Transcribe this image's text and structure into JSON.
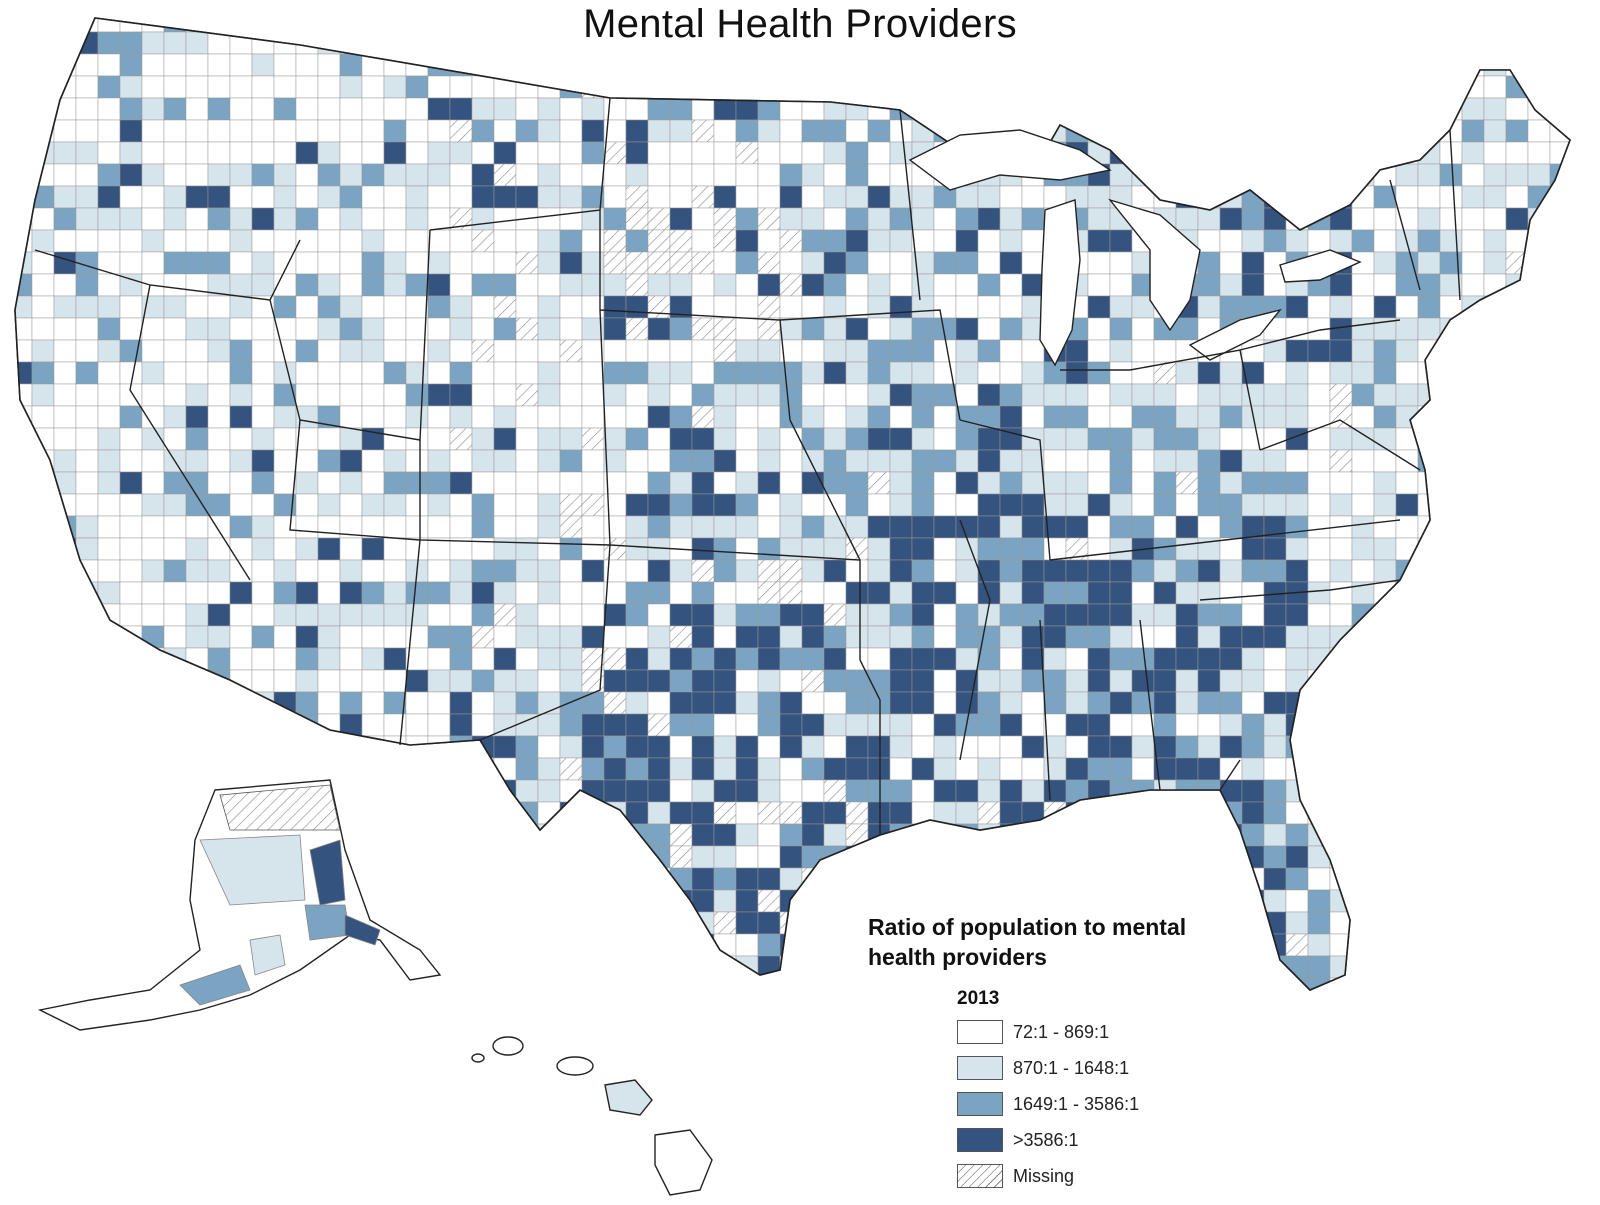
{
  "title": "Mental Health Providers",
  "legend": {
    "title_line1": "Ratio of population to mental",
    "title_line2": "health providers",
    "year": "2013",
    "items": [
      {
        "label": "72:1 - 869:1",
        "color": "#ffffff",
        "pattern": "none"
      },
      {
        "label": "870:1 - 1648:1",
        "color": "#d6e4ec",
        "pattern": "none"
      },
      {
        "label": "1649:1 - 3586:1",
        "color": "#7ba3c2",
        "pattern": "none"
      },
      {
        "label": ">3586:1",
        "color": "#34537f",
        "pattern": "none"
      },
      {
        "label": "Missing",
        "color": "#ffffff",
        "pattern": "hatch"
      }
    ]
  },
  "colors": {
    "border": "#222222",
    "county_line": "#9a9a9a",
    "water": "#ffffff"
  }
}
